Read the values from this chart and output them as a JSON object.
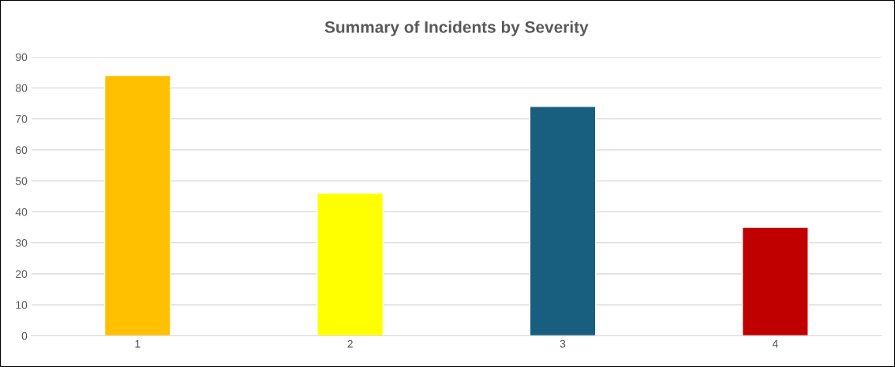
{
  "chart_data": {
    "type": "bar",
    "title": "Summary of Incidents by Severity",
    "categories": [
      "1",
      "2",
      "3",
      "4"
    ],
    "values": [
      84,
      46,
      74,
      35
    ],
    "colors": [
      "#ffc000",
      "#ffff00",
      "#175e7f",
      "#c00000"
    ],
    "ylim": [
      0,
      90
    ],
    "yticks": [
      0,
      10,
      20,
      30,
      40,
      50,
      60,
      70,
      80,
      90
    ],
    "grid": "y"
  }
}
